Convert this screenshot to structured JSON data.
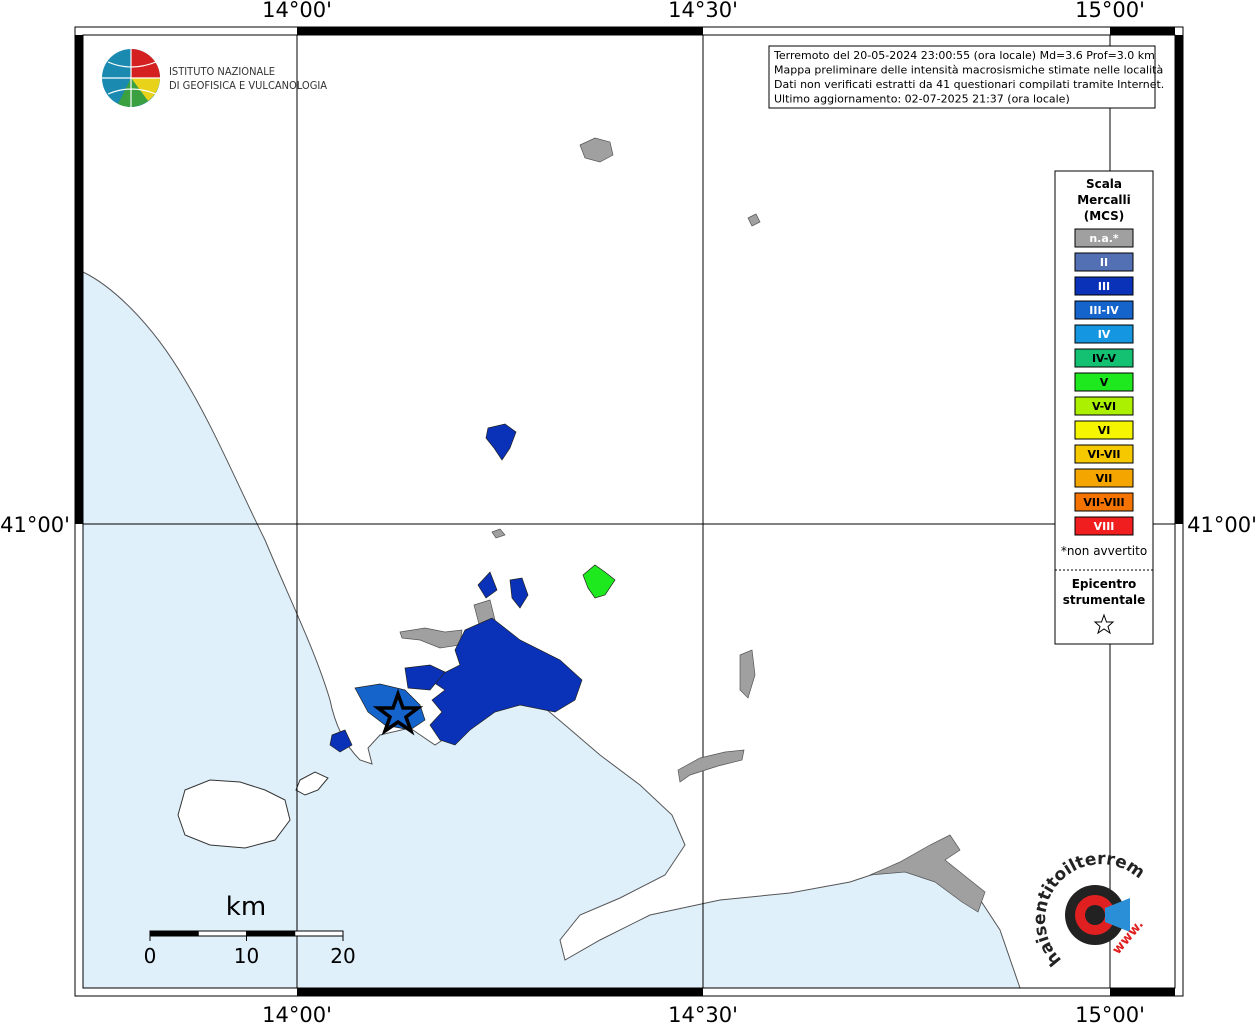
{
  "axes": {
    "top_lon_labels": [
      "14°00'",
      "14°30'",
      "15°00'"
    ],
    "bottom_lon_labels": [
      "14°00'",
      "14°30'",
      "15°00'"
    ],
    "left_lat_label": "41°00'",
    "right_lat_label": "41°00'"
  },
  "logo": {
    "line1": "ISTITUTO NAZIONALE",
    "line2": "DI GEOFISICA E VULCANOLOGIA"
  },
  "info": [
    "Terremoto del 20-05-2024 23:00:55 (ora locale) Md=3.6 Prof=3.0 km",
    "Mappa preliminare delle intensità macrosismiche stimate nelle località",
    "Dati non verificati estratti da 41 questionari compilati tramite Internet.",
    "Ultimo aggiornamento: 02-07-2025 21:37 (ora locale)"
  ],
  "legend": {
    "title": [
      "Scala",
      "Mercalli",
      "(MCS)"
    ],
    "classes": [
      {
        "label": "n.a.*",
        "color": "#a0a0a0",
        "text_color": "#ffffff"
      },
      {
        "label": "II",
        "color": "#5470b4",
        "text_color": "#ffffff"
      },
      {
        "label": "III",
        "color": "#0a32b8",
        "text_color": "#ffffff"
      },
      {
        "label": "III-IV",
        "color": "#1464cc",
        "text_color": "#ffffff"
      },
      {
        "label": "IV",
        "color": "#1496e0",
        "text_color": "#ffffff"
      },
      {
        "label": "IV-V",
        "color": "#14c072",
        "text_color": "#000000"
      },
      {
        "label": "V",
        "color": "#1ee81e",
        "text_color": "#000000"
      },
      {
        "label": "V-VI",
        "color": "#aaf000",
        "text_color": "#000000"
      },
      {
        "label": "VI",
        "color": "#f5f500",
        "text_color": "#000000"
      },
      {
        "label": "VI-VII",
        "color": "#f5c800",
        "text_color": "#000000"
      },
      {
        "label": "VII",
        "color": "#f5a500",
        "text_color": "#000000"
      },
      {
        "label": "VII-VIII",
        "color": "#f57300",
        "text_color": "#000000"
      },
      {
        "label": "VIII",
        "color": "#f01e1e",
        "text_color": "#ffffff"
      }
    ],
    "note": "*non avvertito",
    "epicenter": [
      "Epicentro",
      "strumentale"
    ]
  },
  "scale_bar": {
    "unit": "km",
    "ticks": [
      0,
      10,
      20
    ]
  },
  "badge": {
    "text": "haisentitoilterremoto.it",
    "www": "www."
  }
}
